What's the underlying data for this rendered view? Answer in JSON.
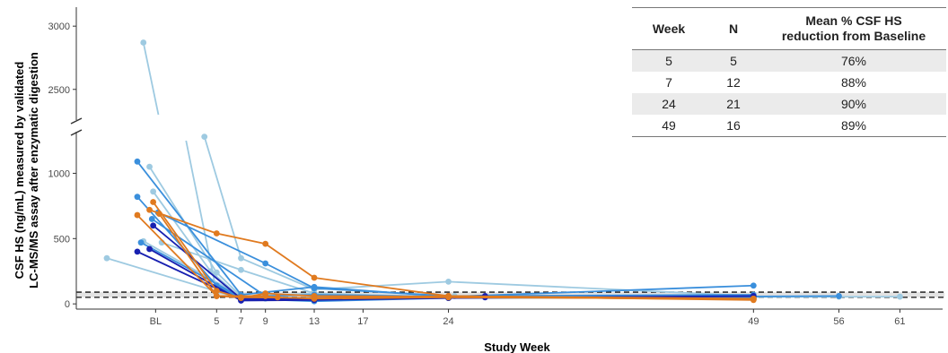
{
  "chart_data": {
    "type": "line",
    "xlabel": "Study Week",
    "ylabel_line1": "CSF HS (ng/mL) measured by validated",
    "ylabel_line2": "LC-MS/MS assay after enzymatic digestion",
    "x_ticks": [
      {
        "label": "BL",
        "value": 0
      },
      {
        "label": "5",
        "value": 5
      },
      {
        "label": "7",
        "value": 7
      },
      {
        "label": "9",
        "value": 9
      },
      {
        "label": "13",
        "value": 13
      },
      {
        "label": "17",
        "value": 17
      },
      {
        "label": "24",
        "value": 24
      },
      {
        "label": "49",
        "value": 49
      },
      {
        "label": "56",
        "value": 56
      },
      {
        "label": "61",
        "value": 61
      }
    ],
    "xlim": [
      -6.5,
      64.5
    ],
    "y_lower_ticks": [
      0,
      500,
      1000
    ],
    "y_lower_range": [
      -40,
      1250
    ],
    "y_upper_ticks": [
      2500,
      3000
    ],
    "y_upper_range": [
      2300,
      3150
    ],
    "y_axis_break": true,
    "reference_band": [
      50,
      90
    ],
    "palette": {
      "light": "#9ecae1",
      "medium": "#3a8fdc",
      "dark": "#1820b0",
      "orange": "#e07a1f"
    },
    "series": [
      {
        "color": "light",
        "points": [
          [
            -4,
            350
          ],
          [
            7,
            40
          ],
          [
            13,
            35
          ],
          [
            24,
            60
          ],
          [
            49,
            55
          ]
        ]
      },
      {
        "color": "light",
        "points": [
          [
            -1,
            2870
          ],
          [
            5,
            90
          ],
          [
            7,
            55
          ],
          [
            13,
            80
          ],
          [
            24,
            50
          ],
          [
            61,
            55
          ]
        ]
      },
      {
        "color": "light",
        "points": [
          [
            -0.5,
            1050
          ],
          [
            5,
            240
          ],
          [
            7,
            60
          ],
          [
            13,
            35
          ],
          [
            24,
            60
          ],
          [
            49,
            50
          ]
        ]
      },
      {
        "color": "light",
        "points": [
          [
            -0.2,
            860
          ],
          [
            4.5,
            250
          ],
          [
            7,
            45
          ],
          [
            13,
            40
          ],
          [
            24,
            45
          ],
          [
            49,
            45
          ]
        ]
      },
      {
        "color": "light",
        "points": [
          [
            4,
            1280
          ],
          [
            7,
            350
          ],
          [
            13,
            110
          ],
          [
            24,
            170
          ],
          [
            49,
            60
          ]
        ]
      },
      {
        "color": "light",
        "points": [
          [
            -1,
            480
          ],
          [
            7,
            60
          ],
          [
            9,
            40
          ],
          [
            13,
            50
          ],
          [
            24.5,
            60
          ],
          [
            56,
            55
          ]
        ]
      },
      {
        "color": "light",
        "points": [
          [
            0.5,
            470
          ],
          [
            7,
            260
          ],
          [
            13,
            80
          ],
          [
            24,
            50
          ],
          [
            49,
            40
          ]
        ]
      },
      {
        "color": "medium",
        "points": [
          [
            -1.5,
            1090
          ],
          [
            7,
            70
          ],
          [
            13,
            130
          ],
          [
            24,
            55
          ],
          [
            49,
            140
          ]
        ]
      },
      {
        "color": "medium",
        "points": [
          [
            -1.5,
            820
          ],
          [
            5,
            140
          ],
          [
            7,
            40
          ],
          [
            13,
            20
          ],
          [
            24,
            45
          ],
          [
            56,
            60
          ]
        ]
      },
      {
        "color": "medium",
        "points": [
          [
            -1.2,
            470
          ],
          [
            7,
            50
          ],
          [
            13,
            45
          ],
          [
            24,
            50
          ],
          [
            49,
            50
          ]
        ]
      },
      {
        "color": "medium",
        "points": [
          [
            -0.3,
            650
          ],
          [
            9,
            60
          ],
          [
            13,
            70
          ],
          [
            24,
            55
          ],
          [
            49,
            45
          ]
        ]
      },
      {
        "color": "medium",
        "points": [
          [
            0.2,
            700
          ],
          [
            9,
            310
          ],
          [
            13,
            120
          ],
          [
            24,
            60
          ],
          [
            49,
            70
          ]
        ]
      },
      {
        "color": "dark",
        "points": [
          [
            -1.5,
            400
          ],
          [
            7,
            30
          ],
          [
            24,
            50
          ],
          [
            27,
            60
          ]
        ]
      },
      {
        "color": "dark",
        "points": [
          [
            -0.5,
            420
          ],
          [
            7,
            25
          ],
          [
            13,
            30
          ],
          [
            24,
            45
          ],
          [
            49,
            60
          ]
        ]
      },
      {
        "color": "dark",
        "points": [
          [
            -0.2,
            600
          ],
          [
            7,
            40
          ],
          [
            13,
            35
          ],
          [
            24,
            55
          ],
          [
            27,
            50
          ]
        ]
      },
      {
        "color": "orange",
        "points": [
          [
            -1.5,
            680
          ],
          [
            5,
            60
          ],
          [
            7,
            50
          ],
          [
            13,
            45
          ],
          [
            24,
            60
          ],
          [
            49,
            40
          ]
        ]
      },
      {
        "color": "orange",
        "points": [
          [
            -0.5,
            720
          ],
          [
            5,
            540
          ],
          [
            9,
            460
          ],
          [
            13,
            200
          ],
          [
            24,
            60
          ],
          [
            49,
            30
          ]
        ]
      },
      {
        "color": "orange",
        "points": [
          [
            -0.2,
            780
          ],
          [
            5,
            100
          ],
          [
            7,
            45
          ],
          [
            9,
            80
          ],
          [
            13,
            60
          ],
          [
            24,
            55
          ],
          [
            49,
            35
          ]
        ]
      },
      {
        "color": "orange",
        "points": [
          [
            0.3,
            690
          ],
          [
            5,
            60
          ],
          [
            9,
            60
          ],
          [
            10,
            50
          ],
          [
            13,
            40
          ],
          [
            24,
            50
          ],
          [
            49,
            40
          ]
        ]
      }
    ]
  },
  "table": {
    "headers": [
      "Week",
      "N",
      "Mean % CSF HS reduction from Baseline"
    ],
    "header_third_line1": "Mean % CSF HS",
    "header_third_line2": "reduction from Baseline",
    "rows": [
      {
        "week": "5",
        "n": "5",
        "pct": "76%"
      },
      {
        "week": "7",
        "n": "12",
        "pct": "88%"
      },
      {
        "week": "24",
        "n": "21",
        "pct": "90%"
      },
      {
        "week": "49",
        "n": "16",
        "pct": "89%"
      }
    ]
  }
}
